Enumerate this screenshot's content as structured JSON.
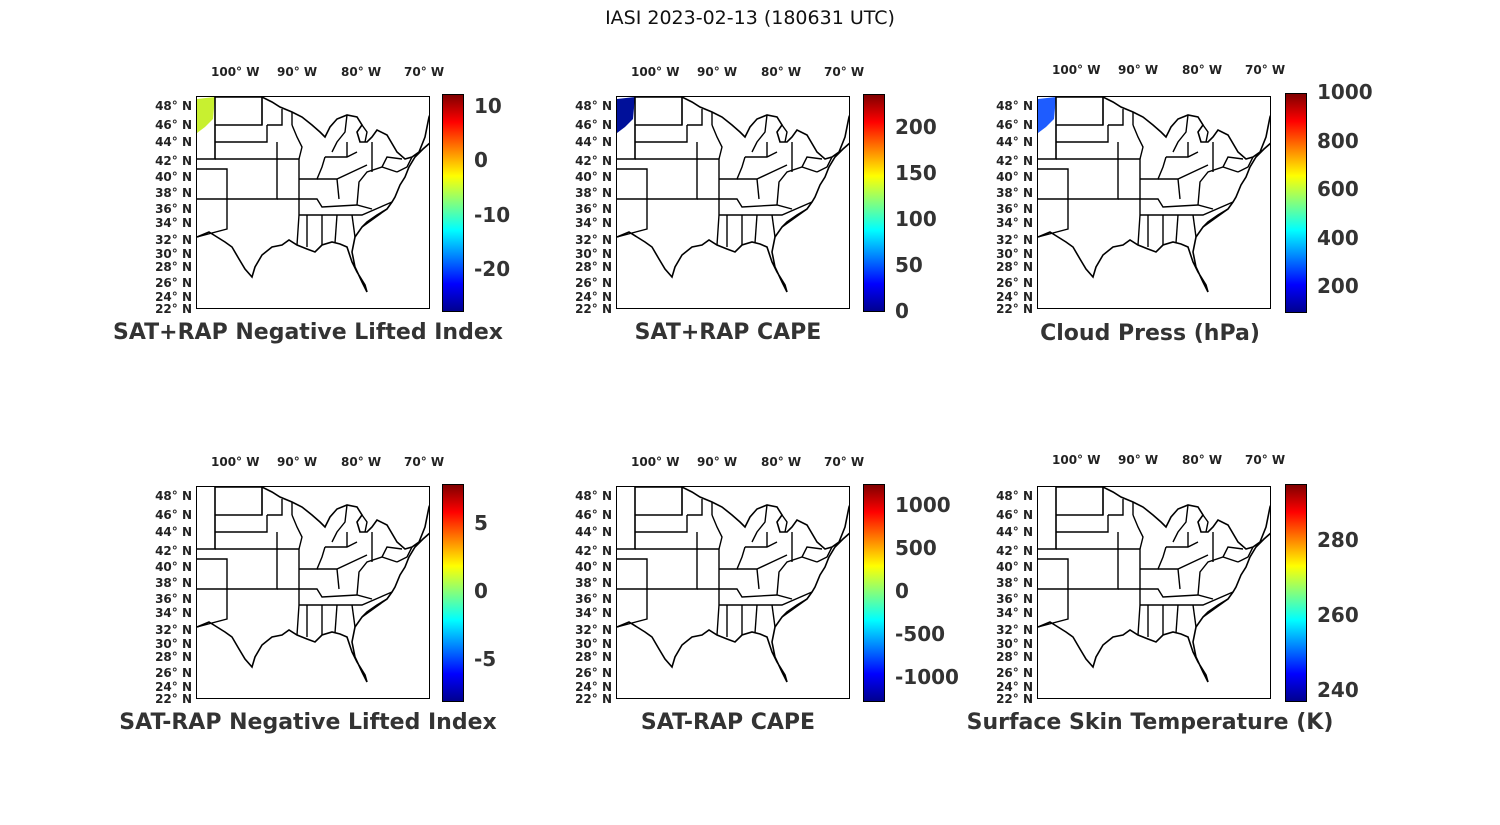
{
  "figure_title": "IASI 2023-02-13 (180631 UTC)",
  "lon_labels": [
    "100° W",
    "90° W",
    "80° W",
    "70° W"
  ],
  "lat_labels": [
    "48° N",
    "46° N",
    "44° N",
    "42° N",
    "40° N",
    "38° N",
    "36° N",
    "34° N",
    "32° N",
    "30° N",
    "28° N",
    "26° N",
    "24° N",
    "22° N"
  ],
  "colormap": "jet",
  "panels": [
    {
      "title": "SAT+RAP Negative Lifted Index",
      "colorbar_ticks": [
        "10",
        "0",
        "-10",
        "-20"
      ],
      "data_patch_color": "#c8f030"
    },
    {
      "title": "SAT+RAP CAPE",
      "colorbar_ticks": [
        "200",
        "150",
        "100",
        "50",
        "0"
      ],
      "data_patch_color": "#00109a"
    },
    {
      "title": "Cloud Press (hPa)",
      "colorbar_ticks": [
        "1000",
        "800",
        "600",
        "400",
        "200"
      ],
      "data_patch_color": "#1e5cff"
    },
    {
      "title": "SAT-RAP Negative Lifted Index",
      "colorbar_ticks": [
        "5",
        "0",
        "-5"
      ],
      "data_patch_color": null
    },
    {
      "title": "SAT-RAP CAPE",
      "colorbar_ticks": [
        "1000",
        "500",
        "0",
        "-500",
        "-1000"
      ],
      "data_patch_color": null
    },
    {
      "title": "Surface Skin Temperature (K)",
      "colorbar_ticks": [
        "280",
        "260",
        "240"
      ],
      "data_patch_color": null
    }
  ]
}
